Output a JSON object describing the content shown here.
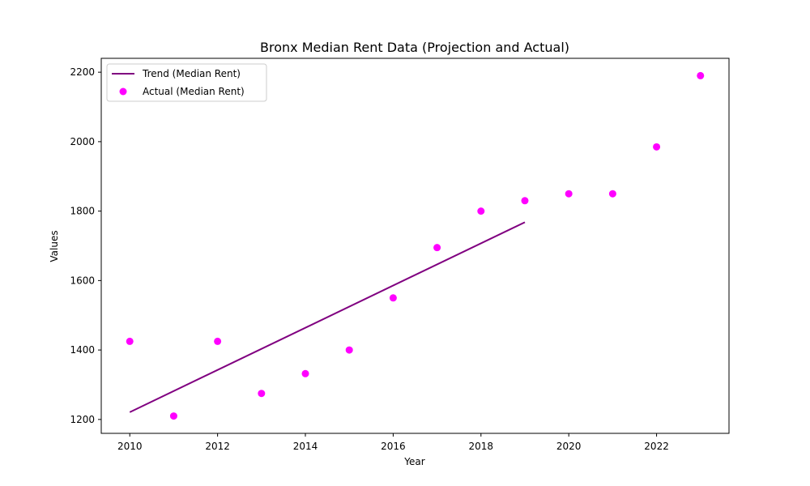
{
  "chart_data": {
    "type": "scatter",
    "title": "Bronx Median Rent Data (Projection and Actual)",
    "xlabel": "Year",
    "ylabel": "Values",
    "xlim": [
      2009.35,
      2023.65
    ],
    "ylim": [
      1160,
      2240
    ],
    "x_ticks": [
      2010,
      2012,
      2014,
      2016,
      2018,
      2020,
      2022
    ],
    "y_ticks": [
      1200,
      1400,
      1600,
      1800,
      2000,
      2200
    ],
    "grid": false,
    "legend_position": "top-left",
    "series": [
      {
        "name": "Trend (Median Rent)",
        "type": "line",
        "color": "#800080",
        "x": [
          2010,
          2019
        ],
        "y": [
          1221,
          1768
        ]
      },
      {
        "name": "Actual (Median Rent)",
        "type": "scatter",
        "color": "#ff00ff",
        "x": [
          2010,
          2011,
          2012,
          2013,
          2014,
          2015,
          2016,
          2017,
          2018,
          2019,
          2020,
          2021,
          2022,
          2023
        ],
        "y": [
          1425,
          1210,
          1425,
          1275,
          1332,
          1400,
          1550,
          1695,
          1800,
          1830,
          1850,
          1850,
          1985,
          2190
        ]
      }
    ]
  }
}
